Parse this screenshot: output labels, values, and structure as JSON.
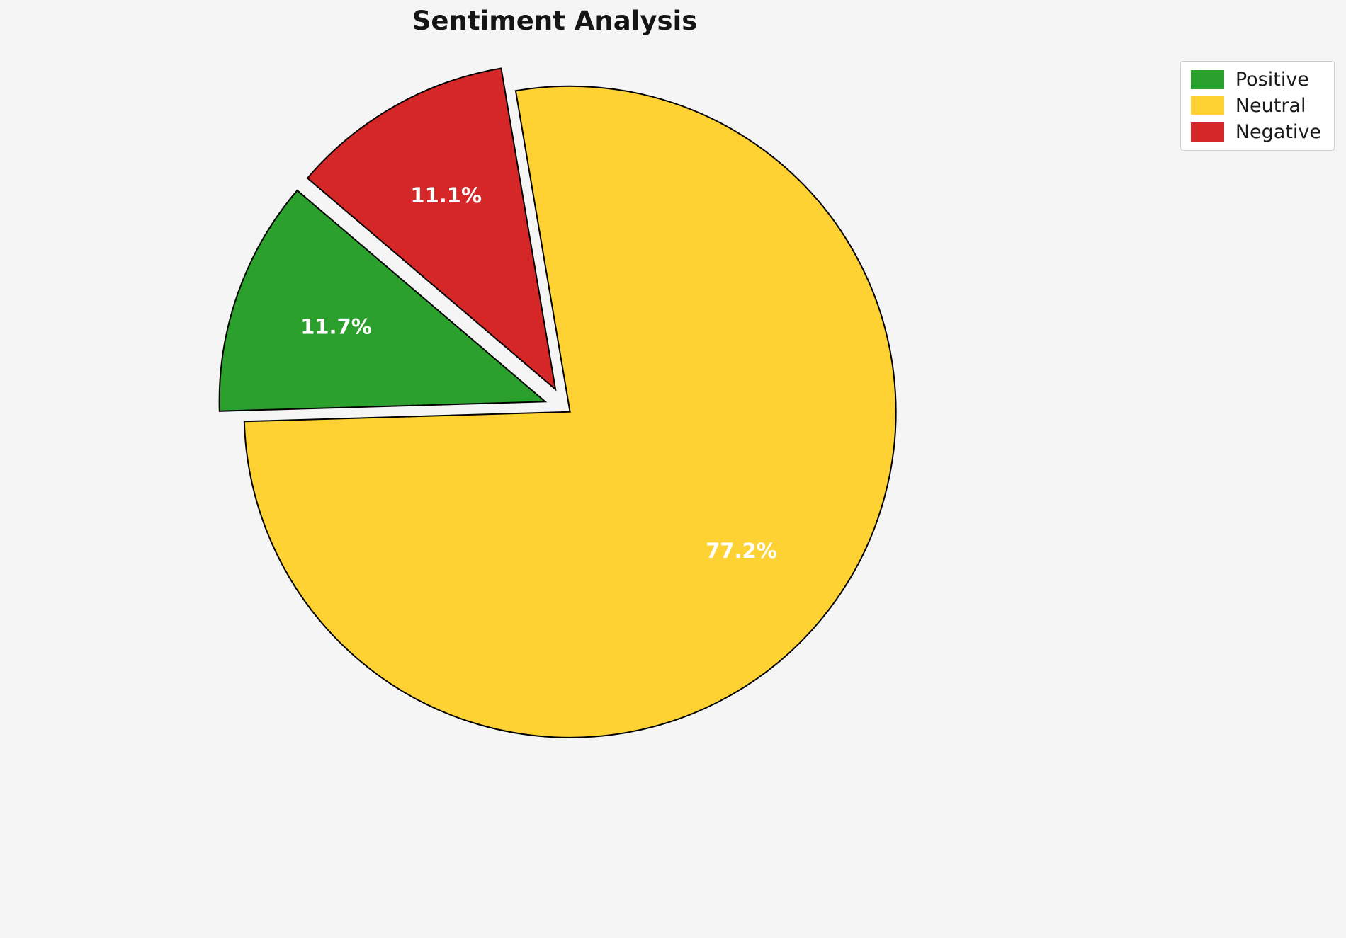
{
  "title": "Sentiment Analysis",
  "background_color": "#f5f5f5",
  "chart_data": {
    "type": "pie",
    "title": "Sentiment Analysis",
    "labels": [
      "Positive",
      "Neutral",
      "Negative"
    ],
    "values": [
      11.7,
      77.2,
      11.1
    ],
    "start_angle": 99.6,
    "direction": "counterclockwise",
    "wedge_edge_color": "#000000",
    "label_color": "#ffffff",
    "slices": [
      {
        "label": "Negative",
        "value": 11.1,
        "pct_label": "11.1%",
        "color": "#d62728",
        "explode": 0.07
      },
      {
        "label": "Positive",
        "value": 11.7,
        "pct_label": "11.7%",
        "color": "#2ca02c",
        "explode": 0.07
      },
      {
        "label": "Neutral",
        "value": 77.2,
        "pct_label": "77.2%",
        "color": "#ffd233",
        "explode": 0.013
      }
    ],
    "legend": {
      "position": "upper right",
      "entries": [
        {
          "label": "Positive",
          "color": "#2ca02c"
        },
        {
          "label": "Neutral",
          "color": "#ffd233"
        },
        {
          "label": "Negative",
          "color": "#d62728"
        }
      ]
    }
  }
}
